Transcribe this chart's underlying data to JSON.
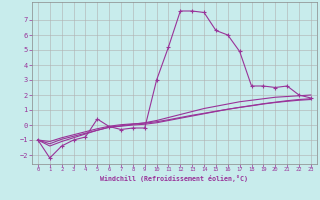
{
  "background_color": "#c8ecec",
  "grid_color": "#b0b0b0",
  "line_color": "#993399",
  "xlabel": "Windchill (Refroidissement éolien,°C)",
  "xlim": [
    -0.5,
    23.5
  ],
  "ylim": [
    -2.6,
    8.2
  ],
  "xticks": [
    0,
    1,
    2,
    3,
    4,
    5,
    6,
    7,
    8,
    9,
    10,
    11,
    12,
    13,
    14,
    15,
    16,
    17,
    18,
    19,
    20,
    21,
    22,
    23
  ],
  "yticks": [
    -2,
    -1,
    0,
    1,
    2,
    3,
    4,
    5,
    6,
    7
  ],
  "main_x": [
    0,
    1,
    2,
    3,
    4,
    5,
    6,
    7,
    8,
    9,
    10,
    11,
    12,
    13,
    14,
    15,
    16,
    17,
    18,
    19,
    20,
    21,
    22,
    23
  ],
  "main_y": [
    -1.0,
    -2.2,
    -1.4,
    -1.0,
    -0.8,
    0.4,
    -0.1,
    -0.3,
    -0.2,
    -0.2,
    3.0,
    5.2,
    7.6,
    7.6,
    7.5,
    6.3,
    6.0,
    4.9,
    2.6,
    2.6,
    2.5,
    2.6,
    2.0,
    1.8
  ],
  "line2_x": [
    0,
    1,
    2,
    3,
    4,
    5,
    6,
    7,
    8,
    9,
    10,
    11,
    12,
    13,
    14,
    15,
    16,
    17,
    18,
    19,
    20,
    21,
    22,
    23
  ],
  "line2_y": [
    -1.0,
    -1.4,
    -1.1,
    -0.85,
    -0.6,
    -0.35,
    -0.15,
    -0.05,
    0.05,
    0.15,
    0.3,
    0.5,
    0.7,
    0.9,
    1.1,
    1.25,
    1.4,
    1.55,
    1.65,
    1.75,
    1.85,
    1.9,
    1.95,
    2.0
  ],
  "line3_x": [
    0,
    1,
    2,
    3,
    4,
    5,
    6,
    7,
    8,
    9,
    10,
    11,
    12,
    13,
    14,
    15,
    16,
    17,
    18,
    19,
    20,
    21,
    22,
    23
  ],
  "line3_y": [
    -1.0,
    -1.25,
    -0.95,
    -0.75,
    -0.55,
    -0.35,
    -0.15,
    -0.08,
    0.0,
    0.05,
    0.15,
    0.3,
    0.45,
    0.6,
    0.75,
    0.9,
    1.05,
    1.18,
    1.3,
    1.42,
    1.52,
    1.62,
    1.7,
    1.75
  ],
  "line4_x": [
    0,
    1,
    2,
    3,
    4,
    5,
    6,
    7,
    8,
    9,
    10,
    11,
    12,
    13,
    14,
    15,
    16,
    17,
    18,
    19,
    20,
    21,
    22,
    23
  ],
  "line4_y": [
    -1.0,
    -1.1,
    -0.85,
    -0.65,
    -0.45,
    -0.25,
    -0.08,
    0.02,
    0.08,
    0.12,
    0.22,
    0.35,
    0.5,
    0.65,
    0.78,
    0.92,
    1.05,
    1.17,
    1.28,
    1.4,
    1.5,
    1.58,
    1.65,
    1.7
  ]
}
